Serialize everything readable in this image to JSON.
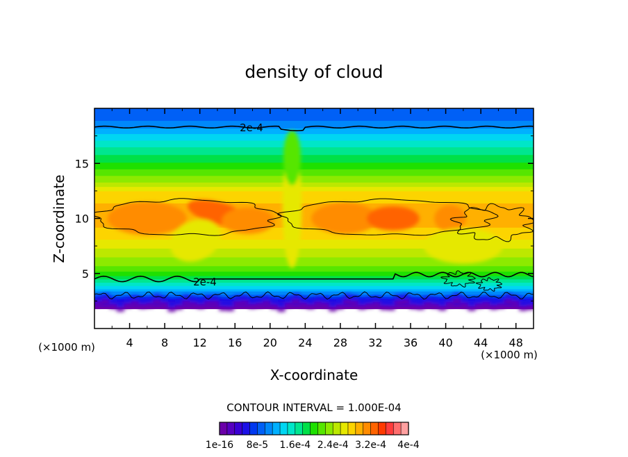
{
  "chart_data": {
    "type": "heatmap",
    "title": "density of cloud",
    "xlabel": "X-coordinate",
    "ylabel": "Z-coordinate",
    "x_unit": "(×1000 m)",
    "z_unit": "(×1000 m)",
    "xlim": [
      0,
      50
    ],
    "ylim": [
      0,
      20
    ],
    "x_ticks": [
      4,
      8,
      12,
      16,
      20,
      24,
      28,
      32,
      36,
      40,
      44,
      48
    ],
    "y_ticks": [
      5,
      10,
      15
    ],
    "grid": false,
    "contour_interval_text": "CONTOUR INTERVAL = 1.000E-04",
    "contour_labels": [
      "2e-4",
      "2e-4"
    ],
    "colorbar": {
      "tick_labels": [
        "1e-16",
        "8e-5",
        "1.6e-4",
        "2.4e-4",
        "3.2e-4",
        "4e-4"
      ],
      "min": 0,
      "max": 0.0004,
      "levels": 24,
      "colors": [
        "#6a00a8",
        "#5600c0",
        "#3a00d4",
        "#1c10e6",
        "#0038f0",
        "#0060f6",
        "#0088fa",
        "#00b0ff",
        "#00d6f2",
        "#00e6c8",
        "#00e690",
        "#00e048",
        "#1ee000",
        "#56e600",
        "#8cea00",
        "#bce800",
        "#e6e800",
        "#fcd400",
        "#ffb000",
        "#ff8c00",
        "#ff6400",
        "#ff3a00",
        "#ff3c3c",
        "#ff6e6e",
        "#ffa0a0"
      ]
    },
    "field_description_points": {
      "z_levels": [
        1.8,
        3.0,
        4.5,
        7.0,
        10.0,
        12.5,
        15.0,
        17.0,
        19.0
      ],
      "typical_values": [
        2e-05,
        8e-05,
        0.00018,
        0.00024,
        0.0003,
        0.00025,
        0.00017,
        0.00011,
        8e-05
      ]
    }
  }
}
